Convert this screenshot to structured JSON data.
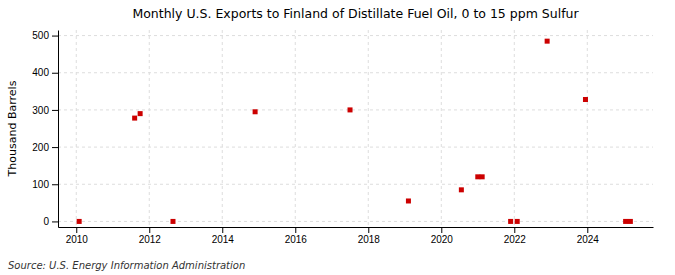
{
  "chart_data": {
    "type": "scatter",
    "title": "Monthly U.S. Exports to Finland of Distillate Fuel Oil, 0 to 15 ppm Sulfur",
    "y_label": "Thousand Barrels",
    "source": "Source: U.S. Energy Information Administration",
    "x": [
      2010.08,
      2011.6,
      2011.75,
      2012.65,
      2014.9,
      2017.5,
      2019.1,
      2020.55,
      2021.0,
      2021.12,
      2021.9,
      2022.08,
      2022.9,
      2023.95,
      2025.05,
      2025.18
    ],
    "values": [
      0,
      278,
      290,
      0,
      295,
      300,
      55,
      85,
      120,
      120,
      0,
      0,
      485,
      328,
      0,
      0
    ],
    "color": "#cc0000",
    "marker": "square",
    "xlim": [
      2009.5,
      2025.8
    ],
    "ylim": [
      -15,
      515
    ],
    "xticks": [
      2010,
      2012,
      2014,
      2016,
      2018,
      2020,
      2022,
      2024
    ],
    "yticks": [
      0,
      100,
      200,
      300,
      400,
      500
    ],
    "grid": true
  }
}
